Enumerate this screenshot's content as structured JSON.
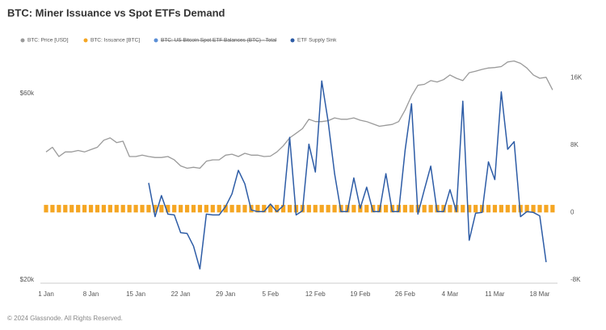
{
  "chart_data": {
    "type": "line",
    "title": "BTC: Miner Issuance vs Spot ETFs Demand",
    "footer": "© 2024 Glassnode. All Rights Reserved.",
    "categories": [
      "1 Jan",
      null,
      null,
      null,
      null,
      null,
      null,
      "8 Jan",
      null,
      null,
      null,
      null,
      null,
      null,
      "15 Jan",
      null,
      null,
      null,
      null,
      null,
      null,
      "22 Jan",
      null,
      null,
      null,
      null,
      null,
      null,
      "29 Jan",
      null,
      null,
      null,
      null,
      null,
      null,
      "5 Feb",
      null,
      null,
      null,
      null,
      null,
      null,
      "12 Feb",
      null,
      null,
      null,
      null,
      null,
      null,
      "19 Feb",
      null,
      null,
      null,
      null,
      null,
      null,
      "26 Feb",
      null,
      null,
      null,
      null,
      null,
      null,
      "4 Mar",
      null,
      null,
      null,
      null,
      null,
      null,
      "11 Mar",
      null,
      null,
      null,
      null,
      null,
      null,
      "18 Mar",
      null,
      null
    ],
    "series": [
      {
        "name": "BTC: Price [USD]",
        "color": "#9a9a9a",
        "type": "line",
        "axis": "y",
        "values": [
          47500,
          48500,
          46500,
          47500,
          47500,
          47800,
          47500,
          48000,
          48500,
          50000,
          50500,
          49500,
          49800,
          46500,
          46500,
          46800,
          46500,
          46300,
          46300,
          46500,
          45800,
          44500,
          44000,
          44200,
          44000,
          45500,
          45800,
          45800,
          46800,
          47000,
          46500,
          47200,
          46800,
          46800,
          46500,
          46600,
          47500,
          48800,
          50500,
          51500,
          52500,
          54500,
          54000,
          54000,
          54200,
          54800,
          54500,
          54500,
          54800,
          54300,
          54000,
          53500,
          53000,
          53200,
          53400,
          54000,
          56500,
          59500,
          61800,
          62000,
          62800,
          62500,
          63000,
          64000,
          63300,
          62800,
          64500,
          64800,
          65200,
          65500,
          65600,
          65800,
          66800,
          67000,
          66500,
          65500,
          64000,
          63300,
          63500,
          60800
        ]
      },
      {
        "name": "BTC: Issuance [BTC]",
        "color": "#f5a623",
        "type": "bar",
        "axis": "y2",
        "values": [
          900,
          900,
          900,
          900,
          900,
          900,
          900,
          900,
          900,
          900,
          900,
          900,
          900,
          900,
          900,
          900,
          900,
          900,
          900,
          900,
          900,
          900,
          900,
          900,
          900,
          900,
          900,
          900,
          900,
          900,
          900,
          900,
          900,
          900,
          900,
          900,
          900,
          900,
          900,
          900,
          900,
          900,
          900,
          900,
          900,
          900,
          900,
          900,
          900,
          900,
          900,
          900,
          900,
          900,
          900,
          900,
          900,
          900,
          900,
          900,
          900,
          900,
          900,
          900,
          900,
          900,
          900,
          900,
          900,
          900,
          900,
          900,
          900,
          900,
          900,
          900,
          900,
          900,
          900,
          900
        ]
      },
      {
        "name": "ETF Supply Sink",
        "color": "#2d5ca6",
        "type": "line",
        "axis": "y2",
        "values": [
          null,
          null,
          null,
          null,
          null,
          null,
          null,
          null,
          null,
          null,
          null,
          null,
          null,
          null,
          null,
          null,
          3500,
          -500,
          2000,
          -200,
          -300,
          -2400,
          -2500,
          -4000,
          -6700,
          -200,
          -300,
          -300,
          700,
          2200,
          5000,
          3400,
          300,
          100,
          100,
          1000,
          100,
          800,
          8900,
          -300,
          200,
          8100,
          4800,
          15600,
          10800,
          4600,
          100,
          100,
          4100,
          500,
          3000,
          100,
          100,
          4600,
          100,
          100,
          7400,
          12900,
          -200,
          2700,
          5500,
          100,
          100,
          2700,
          100,
          13200,
          -3300,
          -100,
          0,
          6000,
          3900,
          14300,
          7500,
          8400,
          -500,
          100,
          0,
          -400,
          -5900,
          null
        ]
      }
    ],
    "hidden_series": [
      {
        "name": "BTC: US Bitcoin Spot ETF Balances (BTC) - Total",
        "color": "#5b8fd6"
      }
    ],
    "ylim": [
      19500,
      72300
    ],
    "yticks": [
      {
        "value": 20000,
        "label": "$20k"
      },
      {
        "value": 60000,
        "label": "$60k"
      }
    ],
    "y2lim": [
      -8300,
      20900
    ],
    "y2ticks": [
      {
        "value": -8000,
        "label": "-8K"
      },
      0,
      {
        "value": 8000,
        "label": "8K"
      },
      {
        "value": 16000,
        "label": "16K"
      }
    ]
  }
}
